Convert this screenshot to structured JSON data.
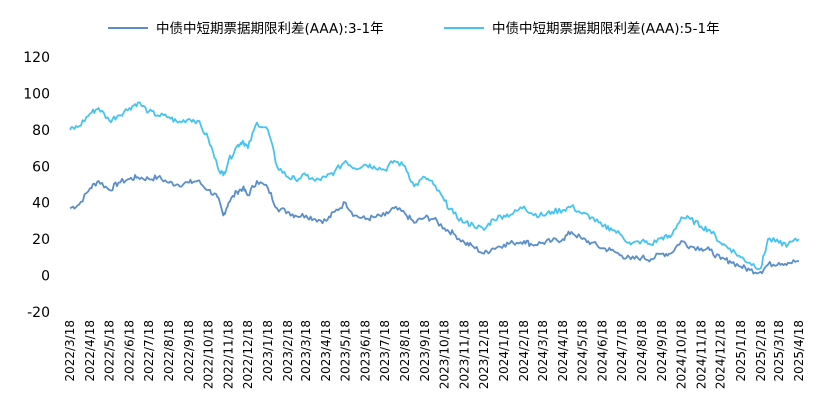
{
  "chart_data": {
    "type": "line",
    "title": "",
    "xlabel": "",
    "ylabel": "",
    "ylim": [
      -20,
      120
    ],
    "yticks": [
      -20,
      0,
      20,
      40,
      60,
      80,
      100,
      120
    ],
    "grid": false,
    "legend_position": "top",
    "x_tick_labels": [
      "2022/3/18",
      "2022/4/18",
      "2022/5/18",
      "2022/6/18",
      "2022/7/18",
      "2022/8/18",
      "2022/9/18",
      "2022/10/18",
      "2022/11/18",
      "2022/12/18",
      "2023/1/18",
      "2023/2/18",
      "2023/3/18",
      "2023/4/18",
      "2023/5/18",
      "2023/6/18",
      "2023/7/18",
      "2023/8/18",
      "2023/9/18",
      "2023/10/18",
      "2023/11/18",
      "2023/12/18",
      "2024/1/18",
      "2024/2/18",
      "2024/3/18",
      "2024/4/18",
      "2024/5/18",
      "2024/6/18",
      "2024/7/18",
      "2024/8/18",
      "2024/9/18",
      "2024/10/18",
      "2024/11/18",
      "2024/12/18",
      "2025/1/18",
      "2025/2/18",
      "2025/3/18",
      "2025/4/18"
    ],
    "x": [
      "2022/3/18",
      "2022/4/1",
      "2022/4/18",
      "2022/5/1",
      "2022/5/18",
      "2022/6/1",
      "2022/6/18",
      "2022/7/1",
      "2022/7/18",
      "2022/8/1",
      "2022/8/18",
      "2022/9/1",
      "2022/9/18",
      "2022/10/1",
      "2022/10/18",
      "2022/11/1",
      "2022/11/10",
      "2022/11/18",
      "2022/12/1",
      "2022/12/10",
      "2022/12/18",
      "2023/1/1",
      "2023/1/18",
      "2023/2/1",
      "2023/2/18",
      "2023/3/1",
      "2023/3/18",
      "2023/4/1",
      "2023/4/18",
      "2023/5/1",
      "2023/5/18",
      "2023/6/1",
      "2023/6/18",
      "2023/7/1",
      "2023/7/18",
      "2023/8/1",
      "2023/8/18",
      "2023/9/1",
      "2023/9/18",
      "2023/10/1",
      "2023/10/18",
      "2023/11/1",
      "2023/11/18",
      "2023/12/1",
      "2023/12/18",
      "2024/1/1",
      "2024/1/18",
      "2024/2/1",
      "2024/2/18",
      "2024/3/1",
      "2024/3/18",
      "2024/4/1",
      "2024/4/18",
      "2024/5/1",
      "2024/5/18",
      "2024/6/1",
      "2024/6/18",
      "2024/7/1",
      "2024/7/18",
      "2024/8/1",
      "2024/8/18",
      "2024/9/1",
      "2024/9/18",
      "2024/10/1",
      "2024/10/18",
      "2024/11/1",
      "2024/11/18",
      "2024/12/1",
      "2024/12/18",
      "2025/1/1",
      "2025/1/18",
      "2025/2/1",
      "2025/2/18",
      "2025/3/1",
      "2025/3/18",
      "2025/4/1",
      "2025/4/18"
    ],
    "series": [
      {
        "name": "中债中短期票据期限利差(AAA):3-1年",
        "color": "#5b8fc9",
        "values": [
          37,
          39,
          48,
          52,
          47,
          51,
          53,
          54,
          53,
          54,
          51,
          50,
          51,
          52,
          47,
          43,
          33,
          40,
          46,
          48,
          44,
          52,
          48,
          37,
          35,
          33,
          33,
          31,
          30,
          35,
          40,
          33,
          31,
          32,
          33,
          37,
          34,
          29,
          32,
          31,
          26,
          23,
          18,
          16,
          12,
          15,
          17,
          18,
          19,
          17,
          18,
          19,
          20,
          24,
          20,
          18,
          15,
          14,
          11,
          9,
          10,
          9,
          12,
          12,
          19,
          16,
          15,
          14,
          9,
          8,
          5,
          3,
          2,
          6,
          7,
          7,
          8
        ]
      },
      {
        "name": "中债中短期票据期限利差(AAA):5-1年",
        "color": "#47c4ee",
        "values": [
          80,
          82,
          89,
          92,
          85,
          88,
          92,
          95,
          90,
          88,
          87,
          84,
          86,
          85,
          75,
          60,
          55,
          63,
          71,
          74,
          70,
          84,
          80,
          60,
          54,
          53,
          55,
          52,
          54,
          57,
          63,
          59,
          61,
          60,
          58,
          63,
          60,
          49,
          54,
          50,
          41,
          34,
          29,
          28,
          25,
          31,
          33,
          34,
          38,
          34,
          33,
          35,
          36,
          38,
          34,
          32,
          27,
          26,
          22,
          17,
          19,
          17,
          21,
          21,
          32,
          31,
          27,
          25,
          18,
          15,
          10,
          7,
          4,
          20,
          18,
          17,
          20
        ]
      }
    ]
  }
}
